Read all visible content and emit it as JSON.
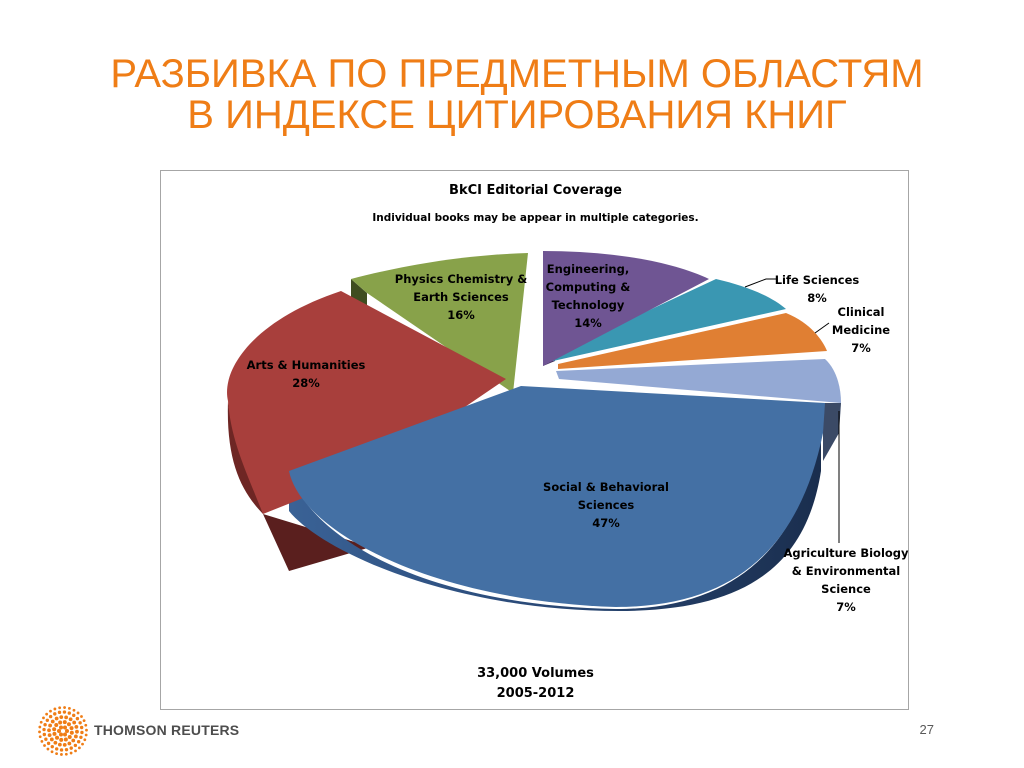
{
  "slide": {
    "title_line1": "РАЗБИВКА ПО ПРЕДМЕТНЫМ ОБЛАСТЯМ",
    "title_line2": "В ИНДЕКСЕ ЦИТИРОВАНИЯ КНИГ",
    "brand": "THOMSON REUTERS",
    "page_number": "27",
    "accent_color": "#ef7d16"
  },
  "chart_data": {
    "type": "pie",
    "title": "BkCI Editorial Coverage",
    "subtitle": "Individual books may be appear in multiple categories.",
    "footer_line1": "33,000 Volumes",
    "footer_line2": "2005-2012",
    "exploded": true,
    "three_d": true,
    "slices": [
      {
        "name": "Engineering, Computing & Technology",
        "label_lines": [
          "Engineering,",
          "Computing &",
          "Technology"
        ],
        "value": 14,
        "value_label": "14%",
        "color": "#6f5593"
      },
      {
        "name": "Life Sciences",
        "label_lines": [
          "Life Sciences"
        ],
        "value": 8,
        "value_label": "8%",
        "color": "#3a97b2"
      },
      {
        "name": "Clinical Medicine",
        "label_lines": [
          "Clinical",
          "Medicine"
        ],
        "value": 7,
        "value_label": "7%",
        "color": "#e07f33"
      },
      {
        "name": "Agriculture Biology & Environmental Science",
        "label_lines": [
          "Agriculture Biology",
          "& Environmental",
          "Science"
        ],
        "value": 7,
        "value_label": "7%",
        "color": "#94a9d4"
      },
      {
        "name": "Social & Behavioral Sciences",
        "label_lines": [
          "Social & Behavioral",
          "Sciences"
        ],
        "value": 47,
        "value_label": "47%",
        "color": "#4470a4"
      },
      {
        "name": "Arts & Humanities",
        "label_lines": [
          "Arts & Humanities"
        ],
        "value": 28,
        "value_label": "28%",
        "color": "#a83f3c"
      },
      {
        "name": "Physics Chemistry & Earth Sciences",
        "label_lines": [
          "Physics Chemistry &",
          "Earth Sciences"
        ],
        "value": 16,
        "value_label": "16%",
        "color": "#88a24a"
      }
    ]
  }
}
